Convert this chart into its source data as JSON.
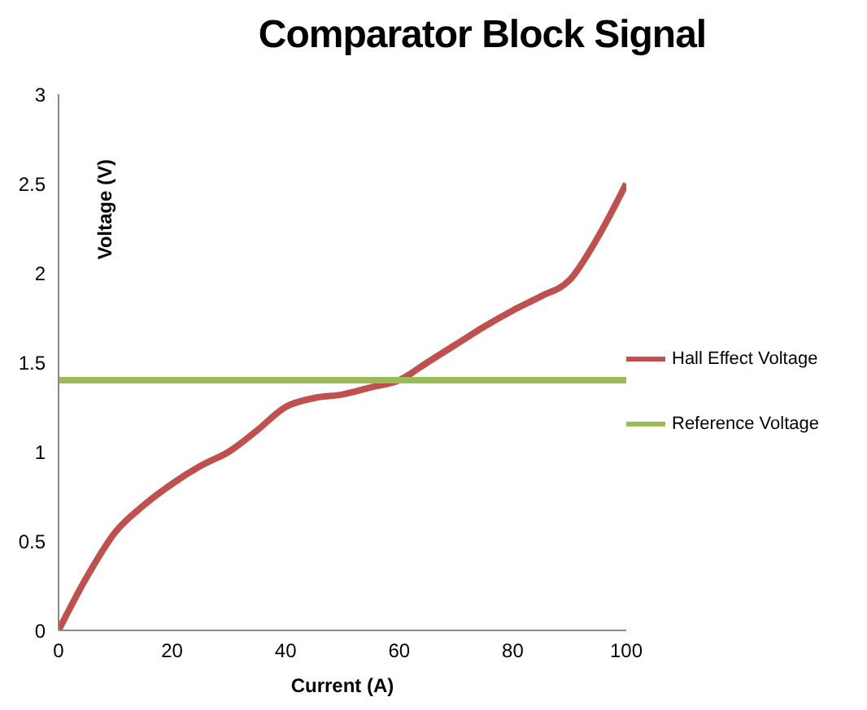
{
  "chart_data": {
    "type": "line",
    "title": "Comparator Block Signal",
    "xlabel": "Current (A)",
    "ylabel": "Voltage (V)",
    "x": [
      0,
      5,
      10,
      15,
      20,
      25,
      30,
      35,
      40,
      45,
      50,
      55,
      60,
      65,
      70,
      75,
      80,
      85,
      90,
      95,
      100
    ],
    "series": [
      {
        "name": "Hall Effect Voltage",
        "color": "#c0504d",
        "values": [
          0,
          0.3,
          0.55,
          0.7,
          0.82,
          0.92,
          1.0,
          1.12,
          1.25,
          1.3,
          1.32,
          1.36,
          1.4,
          1.5,
          1.6,
          1.7,
          1.79,
          1.87,
          1.96,
          2.2,
          2.5
        ]
      },
      {
        "name": "Reference Voltage",
        "color": "#9bbb59",
        "values": [
          1.4,
          1.4,
          1.4,
          1.4,
          1.4,
          1.4,
          1.4,
          1.4,
          1.4,
          1.4,
          1.4,
          1.4,
          1.4,
          1.4,
          1.4,
          1.4,
          1.4,
          1.4,
          1.4,
          1.4,
          1.4
        ]
      }
    ],
    "xlim": [
      0,
      100
    ],
    "xticks": [
      0,
      20,
      40,
      60,
      80,
      100
    ],
    "ylim": [
      0,
      3
    ],
    "yticks": [
      0,
      0.5,
      1,
      1.5,
      2,
      2.5,
      3
    ],
    "grid": false,
    "legend": "right",
    "marker": "none",
    "line_style": "solid"
  }
}
